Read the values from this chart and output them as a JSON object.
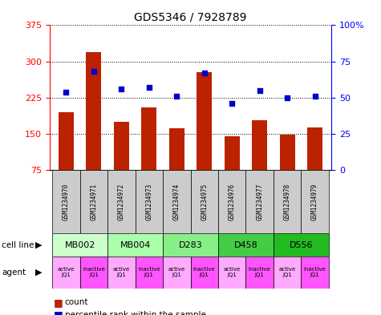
{
  "title": "GDS5346 / 7928789",
  "samples": [
    "GSM1234970",
    "GSM1234971",
    "GSM1234972",
    "GSM1234973",
    "GSM1234974",
    "GSM1234975",
    "GSM1234976",
    "GSM1234977",
    "GSM1234978",
    "GSM1234979"
  ],
  "counts": [
    195,
    320,
    175,
    205,
    162,
    278,
    145,
    178,
    148,
    163
  ],
  "percentile_ranks": [
    54,
    68,
    56,
    57,
    51,
    67,
    46,
    55,
    50,
    51
  ],
  "ylim_left": [
    75,
    375
  ],
  "yticks_left": [
    75,
    150,
    225,
    300,
    375
  ],
  "ylim_right": [
    0,
    100
  ],
  "yticks_right": [
    0,
    25,
    50,
    75,
    100
  ],
  "ytick_right_labels": [
    "0",
    "25",
    "50",
    "75",
    "100%"
  ],
  "cell_lines": [
    {
      "label": "MB002",
      "start": 0,
      "end": 2,
      "color": "#ccffcc"
    },
    {
      "label": "MB004",
      "start": 2,
      "end": 4,
      "color": "#aaffaa"
    },
    {
      "label": "D283",
      "start": 4,
      "end": 6,
      "color": "#88ee88"
    },
    {
      "label": "D458",
      "start": 6,
      "end": 8,
      "color": "#44cc44"
    },
    {
      "label": "D556",
      "start": 8,
      "end": 10,
      "color": "#22bb22"
    }
  ],
  "agents": [
    "active\nJQ1",
    "inactive\nJQ1",
    "active\nJQ1",
    "inactive\nJQ1",
    "active\nJQ1",
    "inactive\nJQ1",
    "active\nJQ1",
    "inactive\nJQ1",
    "active\nJQ1",
    "inactive\nJQ1"
  ],
  "agent_colors": [
    "#ffaaff",
    "#ff55ff",
    "#ffaaff",
    "#ff55ff",
    "#ffaaff",
    "#ff55ff",
    "#ffaaff",
    "#ff55ff",
    "#ffaaff",
    "#ff55ff"
  ],
  "bar_color": "#bb2200",
  "dot_color": "#0000cc",
  "sample_box_color": "#cccccc",
  "bar_width": 0.55
}
